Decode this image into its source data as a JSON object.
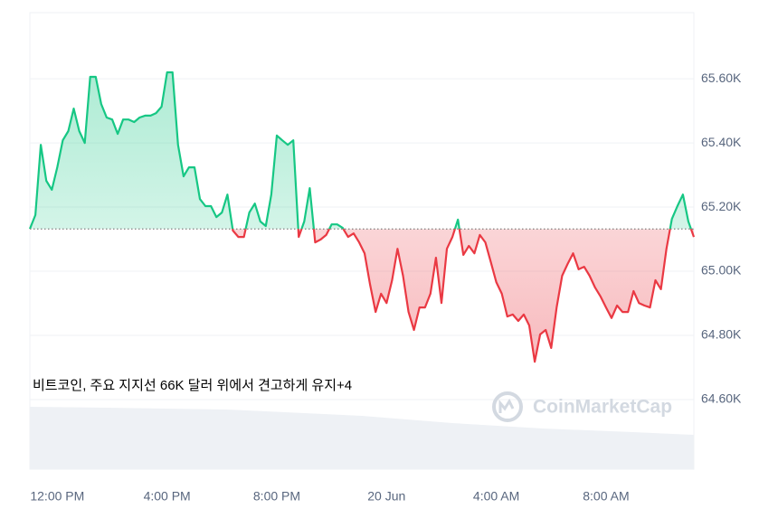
{
  "chart_data": {
    "type": "line",
    "annotation": "비트코인, 주요 지지선 66K 달러 위에서 견고하게 유지+4",
    "watermark": "CoinMarketCap",
    "x": [
      -1,
      -0.8,
      -0.6,
      -0.4,
      -0.2,
      0,
      0.2,
      0.4,
      0.6,
      0.8,
      1,
      1.2,
      1.4,
      1.6,
      1.8,
      2,
      2.2,
      2.4,
      2.6,
      2.8,
      3,
      3.2,
      3.4,
      3.6,
      3.8,
      4,
      4.2,
      4.4,
      4.6,
      4.8,
      5,
      5.2,
      5.4,
      5.6,
      5.8,
      6,
      6.2,
      6.4,
      6.6,
      6.8,
      7,
      7.2,
      7.4,
      7.6,
      7.8,
      8,
      8.2,
      8.4,
      8.6,
      8.8,
      9,
      9.2,
      9.4,
      9.6,
      9.8,
      10,
      10.2,
      10.4,
      10.6,
      10.8,
      11,
      11.2,
      11.4,
      11.6,
      11.8,
      12,
      12.2,
      12.4,
      12.6,
      12.8,
      13,
      13.2,
      13.4,
      13.6,
      13.8,
      14,
      14.2,
      14.4,
      14.6,
      14.8,
      15,
      15.2,
      15.4,
      15.6,
      15.8,
      16,
      16.2,
      16.4,
      16.6,
      16.8,
      17,
      17.2,
      17.4,
      17.6,
      17.8,
      18,
      18.2,
      18.4,
      18.6,
      18.8,
      19,
      19.2,
      19.4,
      19.6,
      19.8,
      20,
      20.2,
      20.4,
      20.6,
      20.8,
      21,
      21.2,
      21.4,
      21.6,
      21.8,
      22,
      22.2,
      22.4,
      22.6,
      22.8,
      23,
      23.2
    ],
    "values": [
      65132,
      65175,
      65394,
      65282,
      65254,
      65324,
      65408,
      65437,
      65507,
      65437,
      65400,
      65606,
      65606,
      65521,
      65479,
      65473,
      65428,
      65473,
      65473,
      65465,
      65479,
      65485,
      65485,
      65493,
      65513,
      65620,
      65620,
      65394,
      65296,
      65324,
      65324,
      65225,
      65203,
      65203,
      65169,
      65183,
      65239,
      65127,
      65107,
      65107,
      65183,
      65211,
      65155,
      65141,
      65239,
      65423,
      65408,
      65394,
      65408,
      65107,
      65155,
      65259,
      65090,
      65099,
      65113,
      65146,
      65146,
      65135,
      65107,
      65118,
      65090,
      65056,
      64958,
      64873,
      64930,
      64901,
      64972,
      65070,
      64986,
      64873,
      64817,
      64887,
      64887,
      64930,
      65042,
      64901,
      65070,
      65107,
      65161,
      65051,
      65079,
      65056,
      65113,
      65090,
      65028,
      64966,
      64930,
      64859,
      64865,
      64845,
      64865,
      64831,
      64718,
      64803,
      64817,
      64761,
      64887,
      64986,
      65023,
      65056,
      65006,
      65014,
      64986,
      64949,
      64921,
      64887,
      64854,
      64893,
      64873,
      64873,
      64938,
      64901,
      64893,
      64887,
      64972,
      64944,
      65070,
      65163,
      65203,
      65239,
      65155,
      65107
    ],
    "baseline": 65132,
    "up_color": "#16c784",
    "down_color": "#ea3943",
    "xlim": [
      -1,
      23.2
    ],
    "xticks": [
      {
        "value": 0,
        "label": "12:00 PM"
      },
      {
        "value": 4,
        "label": "4:00 PM"
      },
      {
        "value": 8,
        "label": "8:00 PM"
      },
      {
        "value": 12,
        "label": "20 Jun"
      },
      {
        "value": 16,
        "label": "4:00 AM"
      },
      {
        "value": 20,
        "label": "8:00 AM"
      }
    ],
    "ylim": [
      64383,
      65806
    ],
    "yticks": [
      {
        "value": 64600,
        "label": "64.60K"
      },
      {
        "value": 64800,
        "label": "64.80K"
      },
      {
        "value": 65000,
        "label": "65.00K"
      },
      {
        "value": 65200,
        "label": "65.20K"
      },
      {
        "value": 65400,
        "label": "65.40K"
      },
      {
        "value": 65600,
        "label": "65.60K"
      }
    ],
    "grid": true
  }
}
